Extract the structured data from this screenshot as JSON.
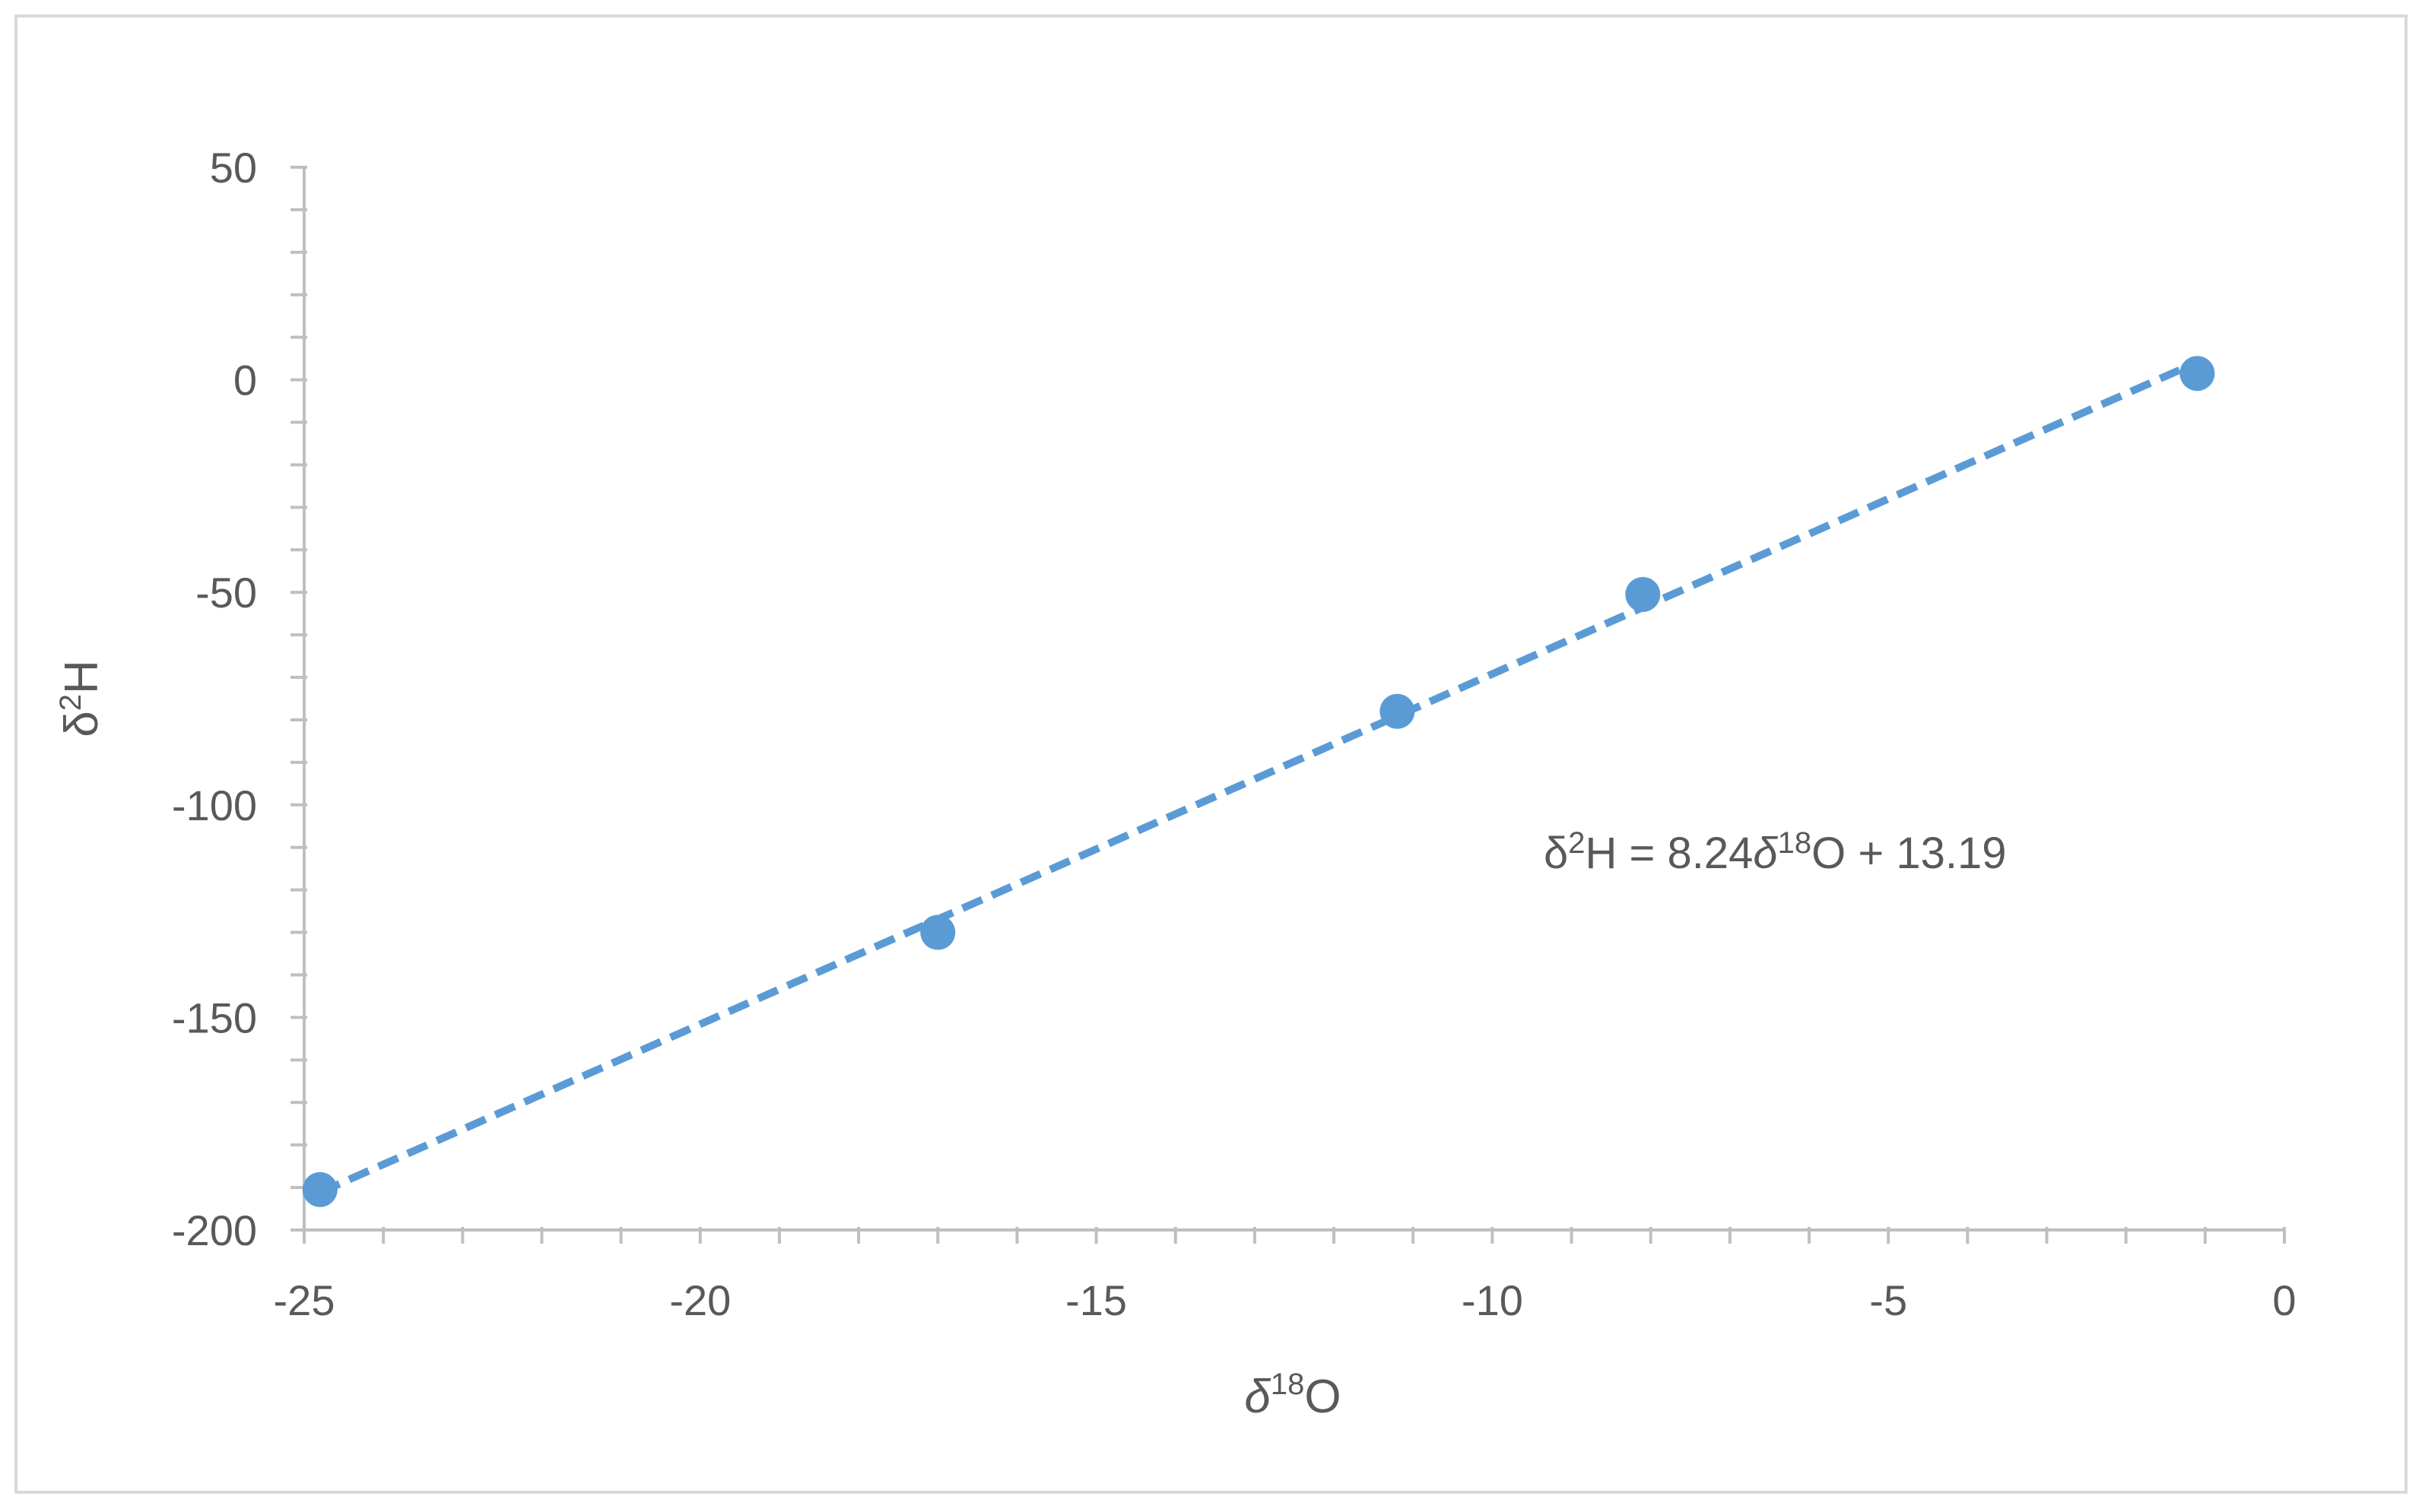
{
  "chart_data": {
    "type": "scatter",
    "xlim": [
      -25,
      0
    ],
    "ylim": [
      -200,
      50
    ],
    "x_ticks": [
      "-25",
      "-20",
      "-15",
      "-10",
      "-5",
      "0"
    ],
    "y_ticks": [
      "50",
      "0",
      "-50",
      "-100",
      "-150",
      "-200"
    ],
    "xlabel": {
      "prefix": "δ",
      "sup": "18",
      "base": "O"
    },
    "ylabel": {
      "prefix": "δ",
      "sup": "2",
      "base": "H"
    },
    "series": [
      {
        "x": [
          -24.8,
          -17.0,
          -11.2,
          -8.1,
          -1.1
        ],
        "y": [
          -190.5,
          -130.0,
          -78.0,
          -50.5,
          1.5
        ]
      }
    ],
    "trendline": {
      "slope": 8.24,
      "intercept": 13.19,
      "x_range": [
        -24.8,
        -1.1
      ],
      "style": "dashed",
      "equation": {
        "lhs_prefix": "δ",
        "lhs_sup": "2",
        "lhs_base": "H",
        "middle": " = 8.24",
        "rhs_prefix": "δ",
        "rhs_sup": "18",
        "rhs_base": "O",
        "suffix": " + 13.19"
      }
    },
    "color": "#5B9BD5",
    "grid": false,
    "legend": "none"
  }
}
